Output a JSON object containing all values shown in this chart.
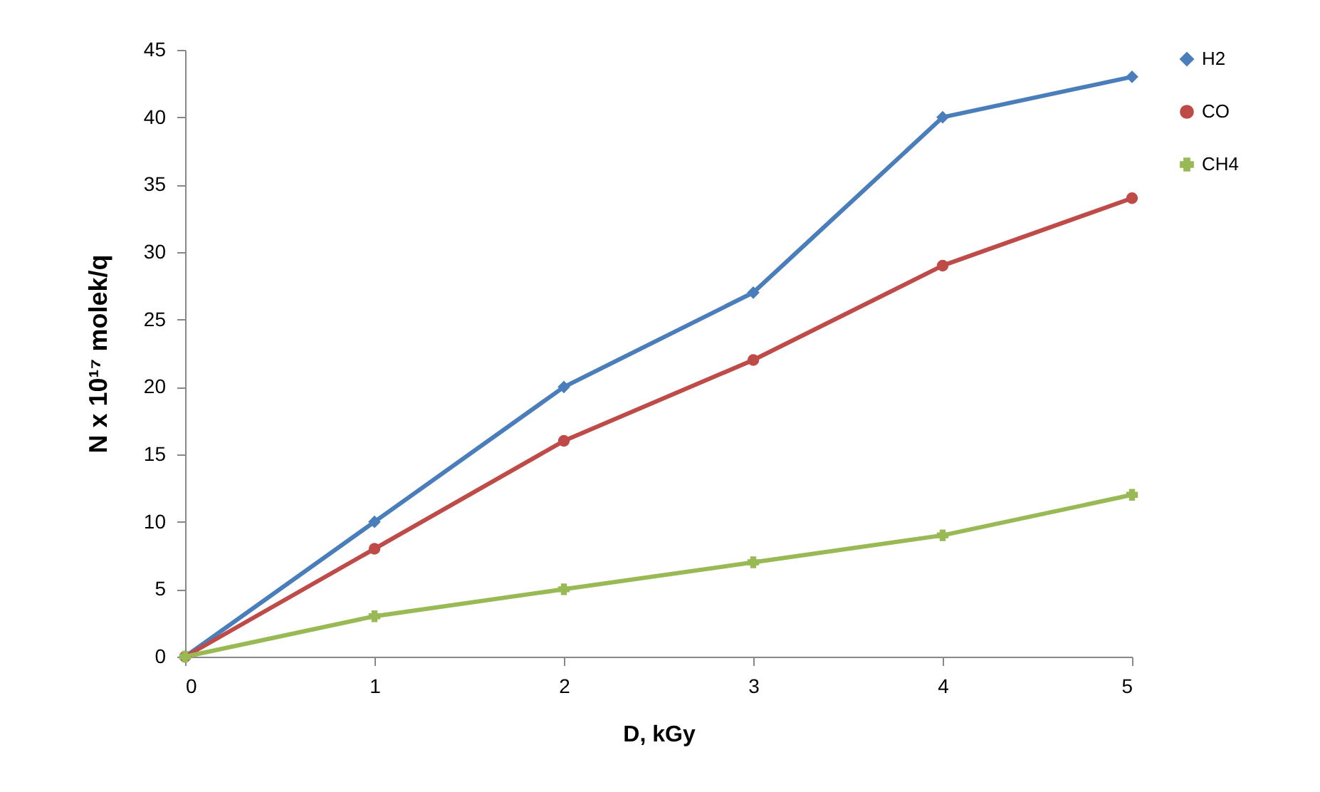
{
  "chart_data": {
    "type": "line",
    "xlabel": "D, kGy",
    "ylabel": "N x 10¹⁷ molek/q",
    "x": [
      0,
      1,
      2,
      3,
      4,
      5
    ],
    "series": [
      {
        "name": "H2",
        "color": "#4a7ebb",
        "marker": "diamond",
        "values": [
          0,
          10,
          20,
          27,
          40,
          43
        ]
      },
      {
        "name": "CO",
        "color": "#be4b48",
        "marker": "circle",
        "values": [
          0,
          8,
          16,
          22,
          29,
          34
        ]
      },
      {
        "name": "CH4",
        "color": "#98b954",
        "marker": "cross",
        "values": [
          0,
          3,
          5,
          7,
          9,
          12
        ]
      }
    ],
    "xlim": [
      0,
      5
    ],
    "xticks": [
      0,
      1,
      2,
      3,
      4,
      5
    ],
    "ylim": [
      0,
      45
    ],
    "yticks": [
      0,
      5,
      10,
      15,
      20,
      25,
      30,
      35,
      40,
      45
    ],
    "grid": false,
    "legend": "right",
    "line_style": "solid"
  }
}
